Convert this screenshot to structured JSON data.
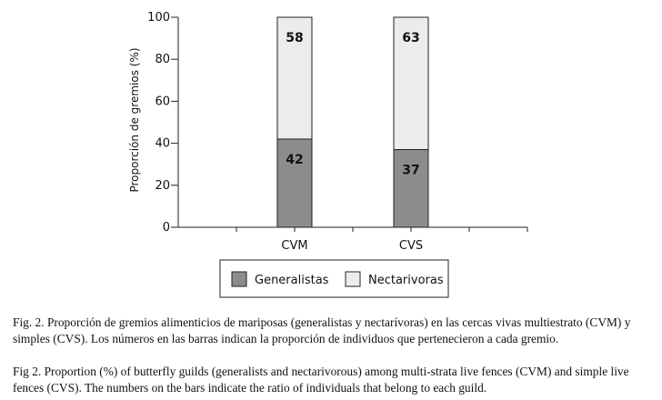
{
  "chart_data": {
    "type": "bar",
    "stacked": true,
    "categories": [
      "CVM",
      "CVS"
    ],
    "series": [
      {
        "name": "Generalistas",
        "values": [
          42,
          37
        ],
        "color": "#8c8c8c"
      },
      {
        "name": "Nectarivoras",
        "values": [
          58,
          63
        ],
        "color": "#ececec"
      }
    ],
    "ylabel": "Proporción de gremios (%)",
    "ylim": [
      0,
      100
    ],
    "yticks": [
      0,
      20,
      40,
      60,
      80,
      100
    ],
    "grid": false,
    "legend_position": "bottom"
  },
  "captions": {
    "spanish": "Fig. 2. Proporción de gremios alimenticios de mariposas (generalistas y nectarívoras) en las cercas vivas multiestrato (CVM) y simples (CVS). Los números en las barras indican la proporción de individuos que pertenecieron a cada gremio.",
    "english": "Fig 2. Proportion (%) of butterfly guilds (generalists and nectarivorous) among multi-strata live fences (CVM) and simple live fences (CVS). The numbers on the bars indicate the ratio of individuals that belong to each guild."
  }
}
